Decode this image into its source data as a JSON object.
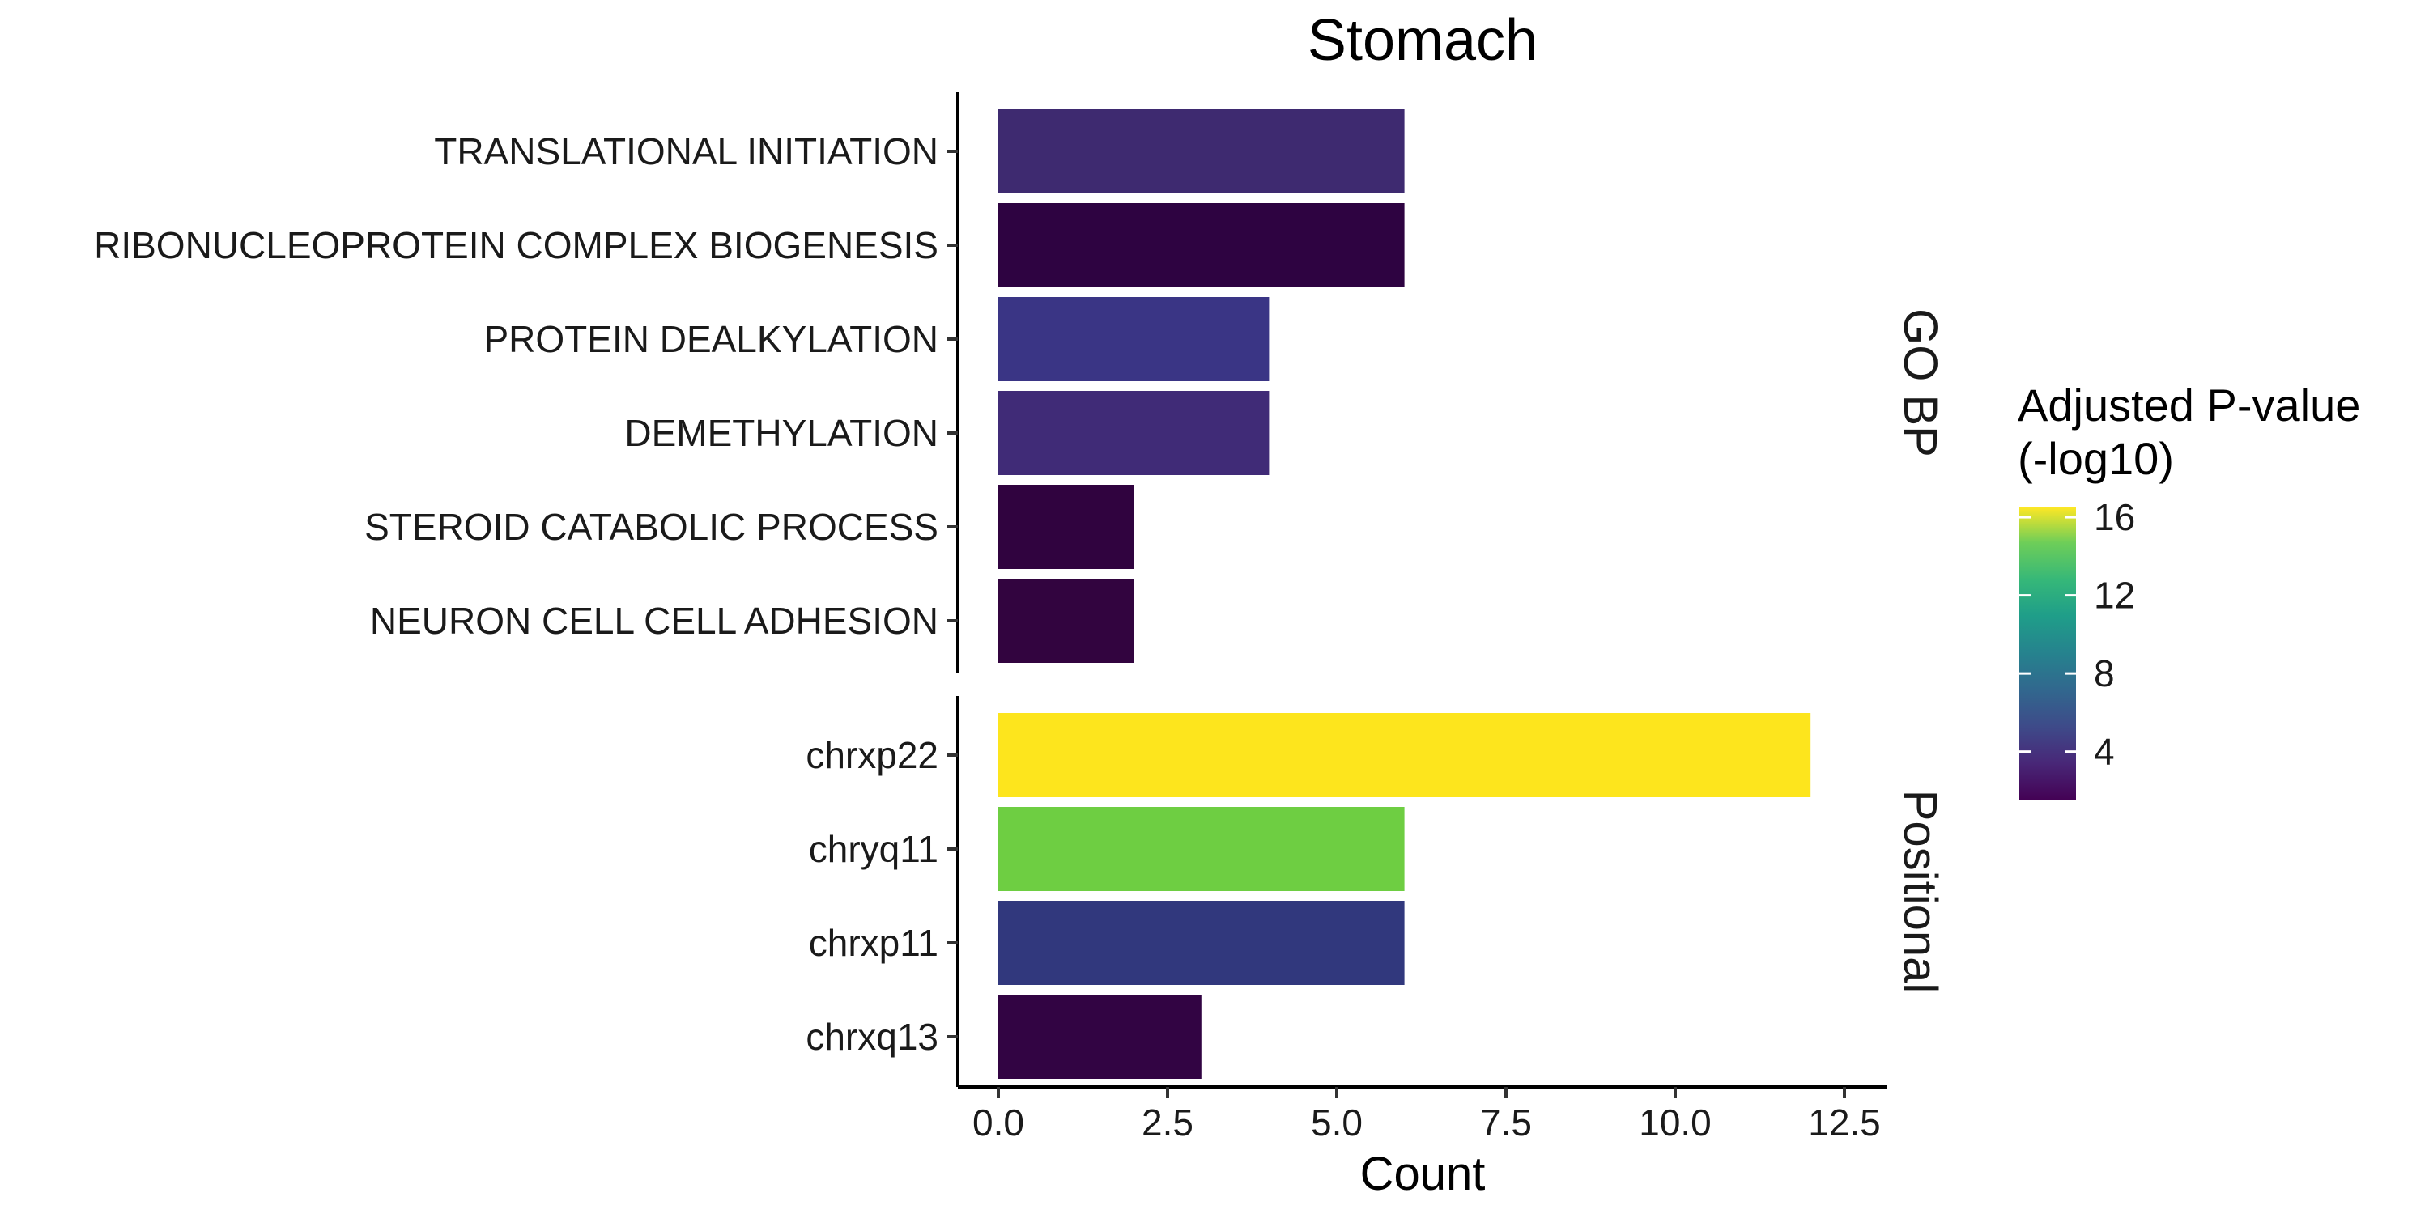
{
  "chart_data": {
    "type": "bar",
    "orientation": "horizontal",
    "title": "Stomach",
    "xlabel": "Count",
    "ylabel": "",
    "xlim": [
      0,
      12.5
    ],
    "x_ticks": [
      "0.0",
      "2.5",
      "5.0",
      "7.5",
      "10.0",
      "12.5"
    ],
    "grid": false,
    "legend": {
      "title_lines": [
        "Adjusted P-value",
        "(-log10)"
      ],
      "type": "colorbar",
      "palette": "viridis",
      "range": [
        1.5,
        16.5
      ],
      "ticks": [
        4,
        8,
        12,
        16
      ],
      "placement": "right"
    },
    "panels": [
      {
        "name": "GO BP",
        "categories": [
          "TRANSLATIONAL INITIATION",
          "RIBONUCLEOPROTEIN COMPLEX BIOGENESIS",
          "PROTEIN DEALKYLATION",
          "DEMETHYLATION",
          "STEROID CATABOLIC PROCESS",
          "NEURON CELL CELL ADHESION"
        ],
        "values": [
          6,
          6,
          4,
          4,
          2,
          2
        ],
        "colors": [
          "#3E2A70",
          "#2E0341",
          "#3A3585",
          "#402B77",
          "#30033F",
          "#32043F"
        ]
      },
      {
        "name": "Positional",
        "categories": [
          "chrxp22",
          "chryq11",
          "chrxp11",
          "chrxq13"
        ],
        "values": [
          12,
          6,
          6,
          3
        ],
        "colors": [
          "#FDE51D",
          "#6ECE42",
          "#31387D",
          "#320443"
        ]
      }
    ]
  }
}
